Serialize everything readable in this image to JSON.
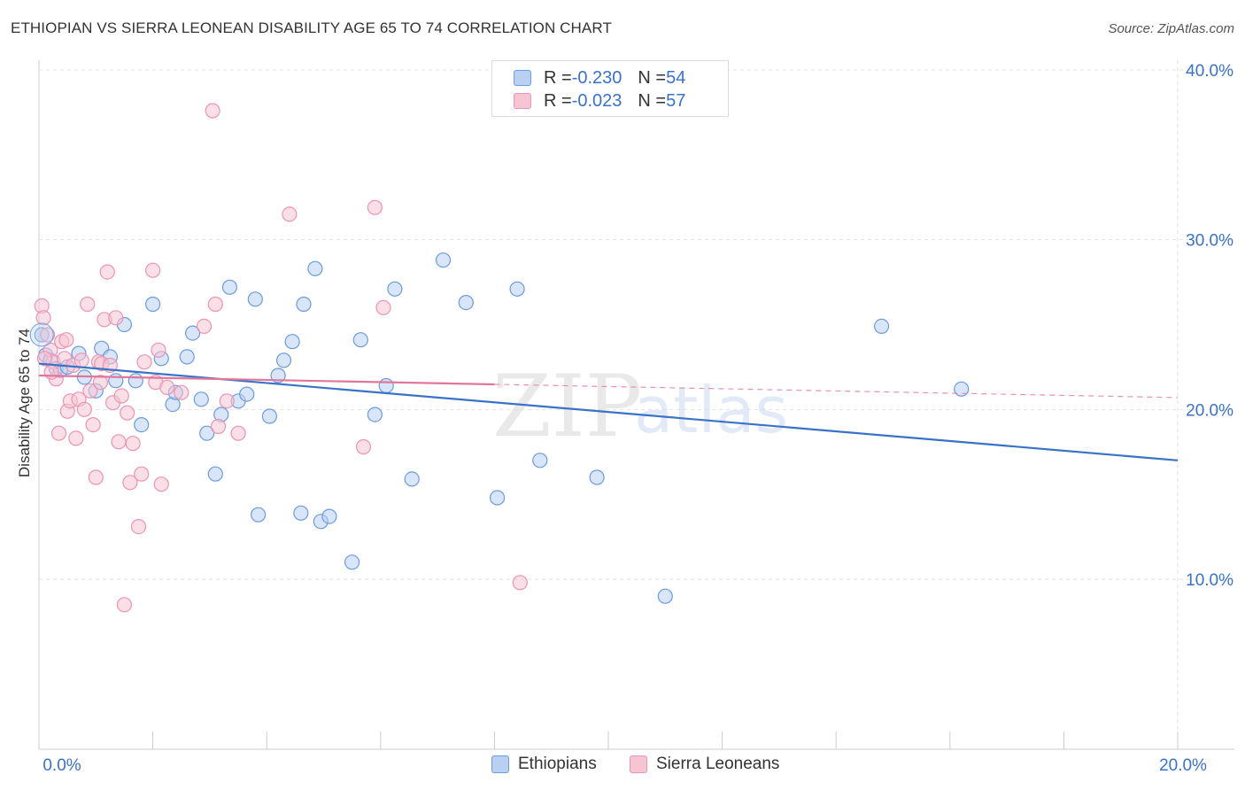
{
  "title": "ETHIOPIAN VS SIERRA LEONEAN DISABILITY AGE 65 TO 74 CORRELATION CHART",
  "source": "Source: ZipAtlas.com",
  "watermark": {
    "zip": "ZIP",
    "atlas": "atlas"
  },
  "colors": {
    "blue": "#3a72c8",
    "blue_fill": "#b9d0f2",
    "pink": "#e0779b",
    "pink_fill": "#f6c4d3",
    "grid": "#e2e2e2",
    "axis_label": "#3a72c8"
  },
  "legend": {
    "rows": [
      {
        "r_label": "R = ",
        "r_value": "-0.230",
        "n_label": "N = ",
        "n_value": "54"
      },
      {
        "r_label": "R = ",
        "r_value": "-0.023",
        "n_label": "N = ",
        "n_value": "57"
      }
    ]
  },
  "bottom_legend": {
    "ethiopians": "Ethiopians",
    "sierra_leoneans": "Sierra Leoneans"
  },
  "chart_data": {
    "type": "scatter",
    "title": "ETHIOPIAN VS SIERRA LEONEAN DISABILITY AGE 65 TO 74 CORRELATION CHART",
    "xlabel": "",
    "ylabel": "Disability Age 65 to 74",
    "xlim": [
      0,
      20
    ],
    "ylim": [
      0,
      42
    ],
    "x_tick_labels": [
      {
        "value": 0,
        "label": "0.0%"
      },
      {
        "value": 20,
        "label": "20.0%"
      }
    ],
    "x_minor_ticks": [
      0,
      2,
      4,
      6,
      8,
      10,
      12,
      14,
      16,
      18,
      20
    ],
    "y_ticks": [
      {
        "value": 10,
        "label": "10.0%"
      },
      {
        "value": 20,
        "label": "20.0%"
      },
      {
        "value": 30,
        "label": "30.0%"
      },
      {
        "value": 40,
        "label": "40.0%"
      }
    ],
    "grid": true,
    "series": [
      {
        "name": "Ethiopians",
        "r": -0.23,
        "n": 54,
        "trend": {
          "x0": 0,
          "y0": 22.7,
          "x1": 20,
          "y1": 17.0,
          "dashed_from": null
        },
        "points": [
          [
            0.05,
            24.4
          ],
          [
            0.12,
            23.2
          ],
          [
            0.2,
            22.9
          ],
          [
            0.3,
            22.4
          ],
          [
            0.38,
            22.3
          ],
          [
            0.5,
            22.5
          ],
          [
            0.7,
            23.3
          ],
          [
            0.8,
            21.9
          ],
          [
            1.0,
            21.1
          ],
          [
            1.1,
            23.6
          ],
          [
            1.25,
            23.1
          ],
          [
            1.35,
            21.7
          ],
          [
            1.5,
            25.0
          ],
          [
            1.7,
            21.7
          ],
          [
            1.8,
            19.1
          ],
          [
            2.0,
            26.2
          ],
          [
            2.15,
            23.0
          ],
          [
            2.35,
            20.3
          ],
          [
            2.4,
            21.0
          ],
          [
            2.6,
            23.1
          ],
          [
            2.7,
            24.5
          ],
          [
            2.85,
            20.6
          ],
          [
            2.95,
            18.6
          ],
          [
            3.1,
            16.2
          ],
          [
            3.2,
            19.7
          ],
          [
            3.35,
            27.2
          ],
          [
            3.5,
            20.5
          ],
          [
            3.65,
            20.9
          ],
          [
            3.8,
            26.5
          ],
          [
            3.85,
            13.8
          ],
          [
            4.05,
            19.6
          ],
          [
            4.2,
            22.0
          ],
          [
            4.3,
            22.9
          ],
          [
            4.45,
            24.0
          ],
          [
            4.6,
            13.9
          ],
          [
            4.65,
            26.2
          ],
          [
            4.85,
            28.3
          ],
          [
            4.95,
            13.4
          ],
          [
            5.1,
            13.7
          ],
          [
            5.5,
            11.0
          ],
          [
            5.65,
            24.1
          ],
          [
            5.9,
            19.7
          ],
          [
            6.1,
            21.4
          ],
          [
            6.25,
            27.1
          ],
          [
            6.55,
            15.9
          ],
          [
            7.1,
            28.8
          ],
          [
            7.5,
            26.3
          ],
          [
            8.05,
            14.8
          ],
          [
            8.4,
            27.1
          ],
          [
            8.8,
            17.0
          ],
          [
            9.8,
            16.0
          ],
          [
            11.0,
            9.0
          ],
          [
            14.8,
            24.9
          ],
          [
            16.2,
            21.2
          ]
        ]
      },
      {
        "name": "Sierra Leoneans",
        "r": -0.023,
        "n": 57,
        "trend": {
          "x0": 0,
          "y0": 22.0,
          "x1": 20,
          "y1": 20.7,
          "dashed_from": 8.0
        },
        "points": [
          [
            0.05,
            26.1
          ],
          [
            0.08,
            25.4
          ],
          [
            0.15,
            24.4
          ],
          [
            0.2,
            23.5
          ],
          [
            0.25,
            22.8
          ],
          [
            0.3,
            21.8
          ],
          [
            0.35,
            18.6
          ],
          [
            0.4,
            24.0
          ],
          [
            0.45,
            23.0
          ],
          [
            0.5,
            19.9
          ],
          [
            0.55,
            20.5
          ],
          [
            0.6,
            22.6
          ],
          [
            0.65,
            18.3
          ],
          [
            0.7,
            20.6
          ],
          [
            0.75,
            22.9
          ],
          [
            0.8,
            20.0
          ],
          [
            0.85,
            26.2
          ],
          [
            0.9,
            21.1
          ],
          [
            0.95,
            19.1
          ],
          [
            1.0,
            16.0
          ],
          [
            1.05,
            22.8
          ],
          [
            1.1,
            22.7
          ],
          [
            1.15,
            25.3
          ],
          [
            1.2,
            28.1
          ],
          [
            1.25,
            22.6
          ],
          [
            1.3,
            20.4
          ],
          [
            1.35,
            25.4
          ],
          [
            1.4,
            18.1
          ],
          [
            1.45,
            20.8
          ],
          [
            1.5,
            8.5
          ],
          [
            1.55,
            19.8
          ],
          [
            1.6,
            15.7
          ],
          [
            1.65,
            18.0
          ],
          [
            1.75,
            13.1
          ],
          [
            1.8,
            16.2
          ],
          [
            1.85,
            22.8
          ],
          [
            2.0,
            28.2
          ],
          [
            2.05,
            21.6
          ],
          [
            2.1,
            23.5
          ],
          [
            2.15,
            15.6
          ],
          [
            2.5,
            21.0
          ],
          [
            2.9,
            24.9
          ],
          [
            3.05,
            37.6
          ],
          [
            3.1,
            26.2
          ],
          [
            3.15,
            19.0
          ],
          [
            3.3,
            20.5
          ],
          [
            3.5,
            18.6
          ],
          [
            4.4,
            31.5
          ],
          [
            5.7,
            17.8
          ],
          [
            5.9,
            31.9
          ],
          [
            6.05,
            26.0
          ],
          [
            8.45,
            9.8
          ],
          [
            0.1,
            23.0
          ],
          [
            0.22,
            22.2
          ],
          [
            0.48,
            24.1
          ],
          [
            1.08,
            21.6
          ],
          [
            2.25,
            21.3
          ]
        ]
      }
    ]
  }
}
